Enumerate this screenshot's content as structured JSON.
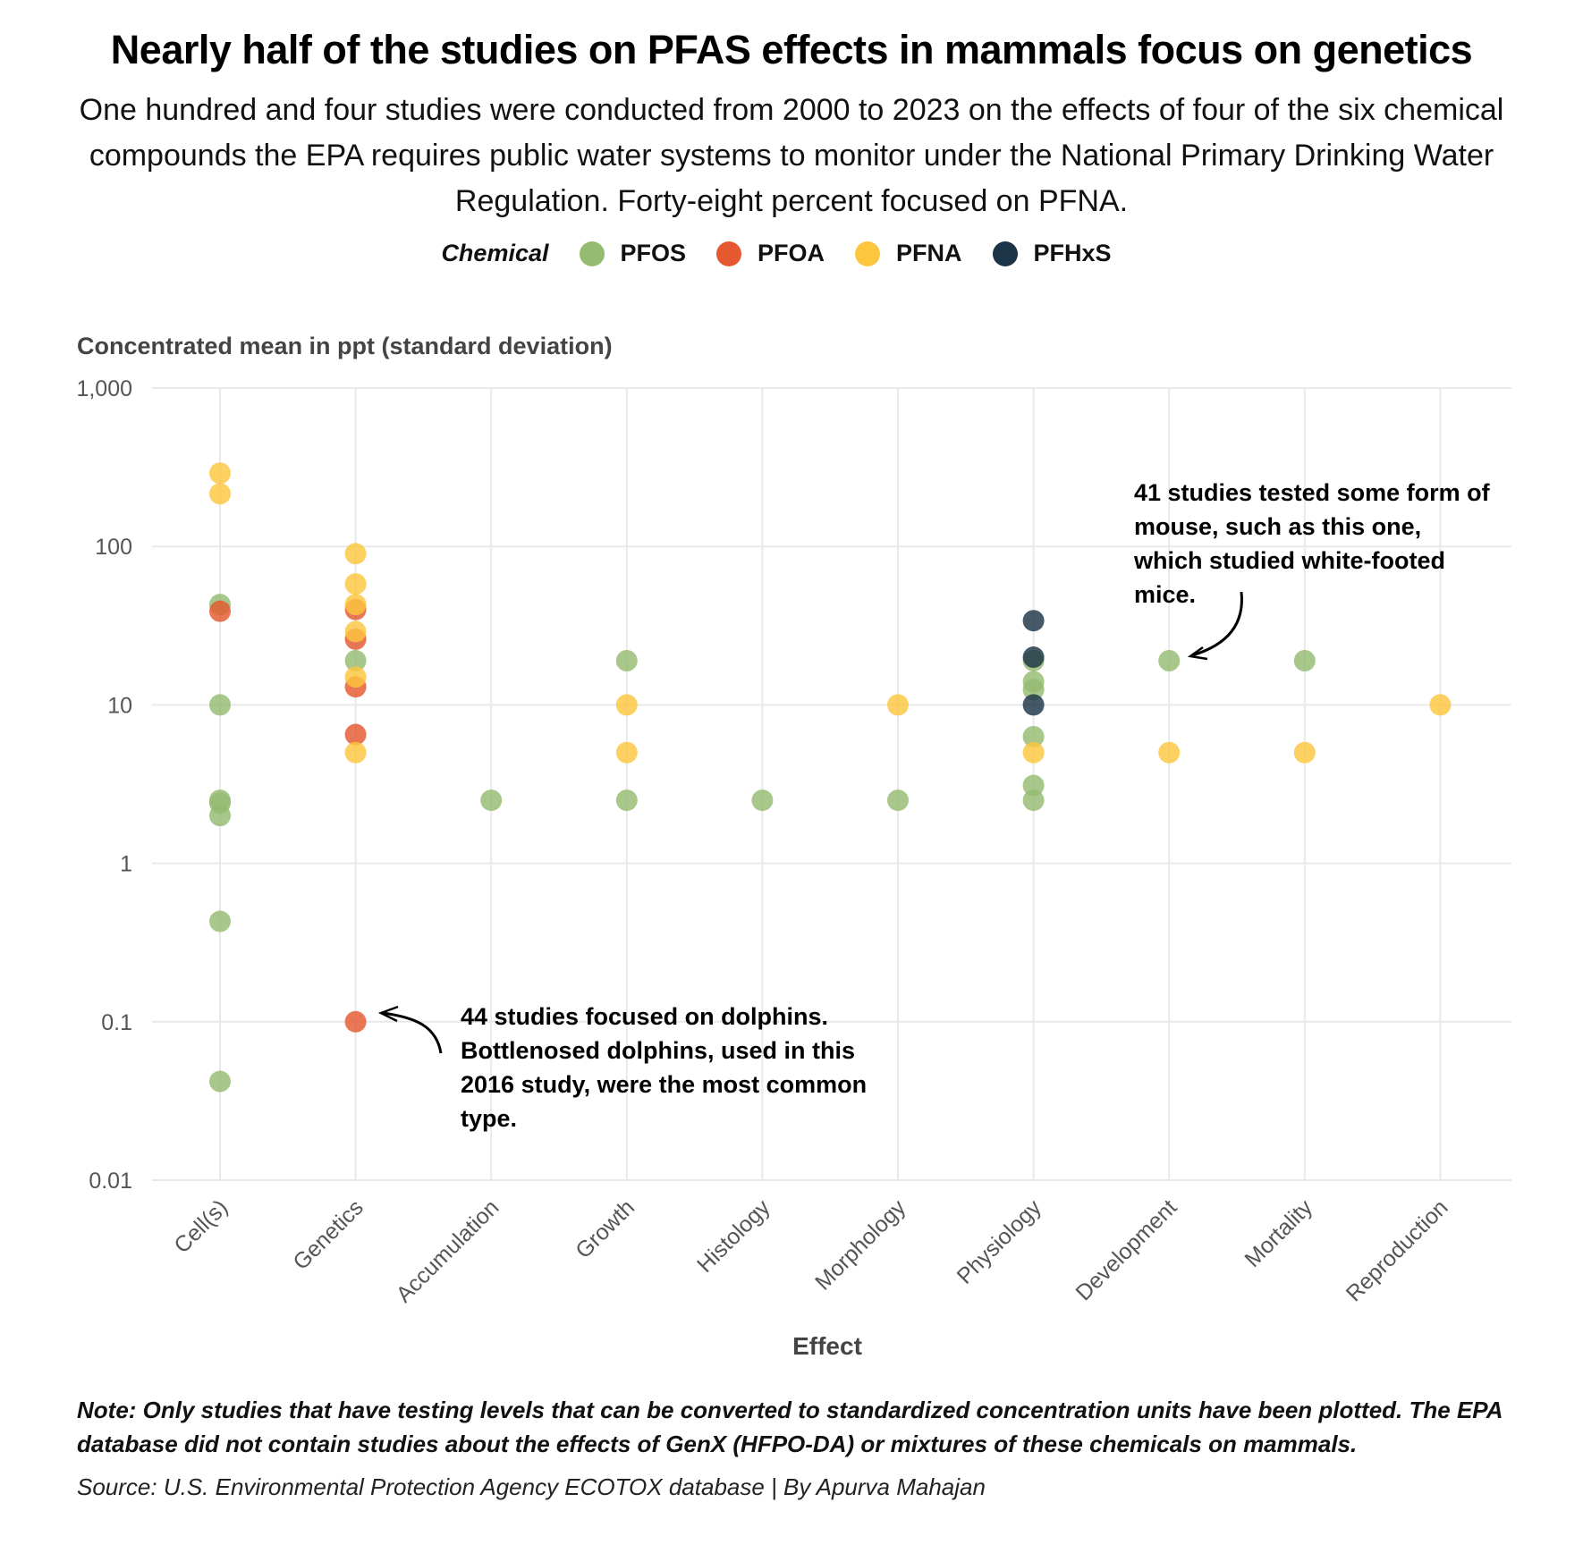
{
  "title": "Nearly half of the studies on PFAS effects in mammals focus on genetics",
  "subtitle": "One hundred and four studies were conducted from 2000 to 2023 on the effects of four of the six chemical compounds the EPA requires public water systems to monitor under the National Primary Drinking Water Regulation. Forty-eight percent focused on PFNA.",
  "legend": {
    "title": "Chemical",
    "items": [
      {
        "label": "PFOS",
        "color": "#95bb72"
      },
      {
        "label": "PFOA",
        "color": "#e4592f"
      },
      {
        "label": "PFNA",
        "color": "#fcc63f"
      },
      {
        "label": "PFHxS",
        "color": "#1c3447"
      }
    ]
  },
  "annotations": {
    "dolphin": "44 studies focused on dolphins. Bottlenosed dolphins, used in this 2016 study, were the most common type.",
    "mouse": "41 studies tested some form of mouse, such as this one, which studied white-footed mice."
  },
  "note": "Note: Only studies that have testing levels that can be converted to standardized concentration units have been plotted. The EPA database did not contain studies about the effects of GenX (HFPO-DA) or mixtures of these chemicals on mammals.",
  "source": "Source: U.S. Environmental Protection Agency ECOTOX database | By Apurva Mahajan",
  "chart_data": {
    "type": "scatter",
    "title": "Nearly half of the studies on PFAS effects in mammals focus on genetics",
    "xlabel": "Effect",
    "ylabel": "Concentrated mean in ppt (standard deviation)",
    "y_scale": "log",
    "ylim": [
      0.01,
      1000
    ],
    "y_ticks": [
      0.01,
      0.1,
      1,
      10,
      100,
      1000
    ],
    "y_tick_labels": [
      "0.01",
      "0.1",
      "1",
      "10",
      "100",
      "1,000"
    ],
    "categories": [
      "Cell(s)",
      "Genetics",
      "Accumulation",
      "Growth",
      "Histology",
      "Morphology",
      "Physiology",
      "Development",
      "Mortality",
      "Reproduction"
    ],
    "grid": true,
    "legend_position": "top",
    "series": [
      {
        "name": "PFOS",
        "color": "#95bb72",
        "points": [
          [
            "Cell(s)",
            43
          ],
          [
            "Cell(s)",
            10
          ],
          [
            "Cell(s)",
            2.5
          ],
          [
            "Cell(s)",
            2.4
          ],
          [
            "Cell(s)",
            2.0
          ],
          [
            "Cell(s)",
            0.43
          ],
          [
            "Cell(s)",
            0.042
          ],
          [
            "Genetics",
            19
          ],
          [
            "Accumulation",
            2.5
          ],
          [
            "Growth",
            19
          ],
          [
            "Growth",
            2.5
          ],
          [
            "Histology",
            2.5
          ],
          [
            "Morphology",
            2.5
          ],
          [
            "Physiology",
            19
          ],
          [
            "Physiology",
            14
          ],
          [
            "Physiology",
            12.5
          ],
          [
            "Physiology",
            6.3
          ],
          [
            "Physiology",
            3.1
          ],
          [
            "Physiology",
            2.5
          ],
          [
            "Development",
            19
          ],
          [
            "Mortality",
            19
          ]
        ]
      },
      {
        "name": "PFOA",
        "color": "#e4592f",
        "points": [
          [
            "Cell(s)",
            39
          ],
          [
            "Genetics",
            40
          ],
          [
            "Genetics",
            26
          ],
          [
            "Genetics",
            13
          ],
          [
            "Genetics",
            6.5
          ],
          [
            "Genetics",
            0.1
          ]
        ]
      },
      {
        "name": "PFNA",
        "color": "#fcc63f",
        "points": [
          [
            "Cell(s)",
            290
          ],
          [
            "Cell(s)",
            215
          ],
          [
            "Genetics",
            90
          ],
          [
            "Genetics",
            58
          ],
          [
            "Genetics",
            43
          ],
          [
            "Genetics",
            29
          ],
          [
            "Genetics",
            15
          ],
          [
            "Genetics",
            5
          ],
          [
            "Growth",
            10
          ],
          [
            "Growth",
            5
          ],
          [
            "Morphology",
            10
          ],
          [
            "Physiology",
            5
          ],
          [
            "Development",
            5
          ],
          [
            "Mortality",
            5
          ],
          [
            "Reproduction",
            10
          ]
        ]
      },
      {
        "name": "PFHxS",
        "color": "#1c3447",
        "points": [
          [
            "Physiology",
            34
          ],
          [
            "Physiology",
            20
          ],
          [
            "Physiology",
            10
          ]
        ]
      }
    ]
  }
}
